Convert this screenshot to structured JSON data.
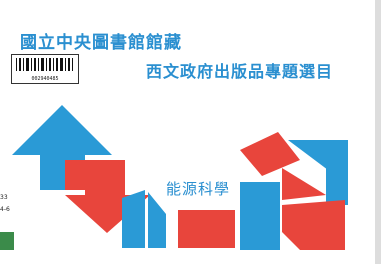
{
  "header": {
    "title": "國立中央圖書館館藏",
    "subtitle": "西文政府出版品專題選目"
  },
  "topic": "能源科學",
  "barcode": {
    "number": "002940485"
  },
  "call_number": [
    "33",
    "4-6"
  ]
}
